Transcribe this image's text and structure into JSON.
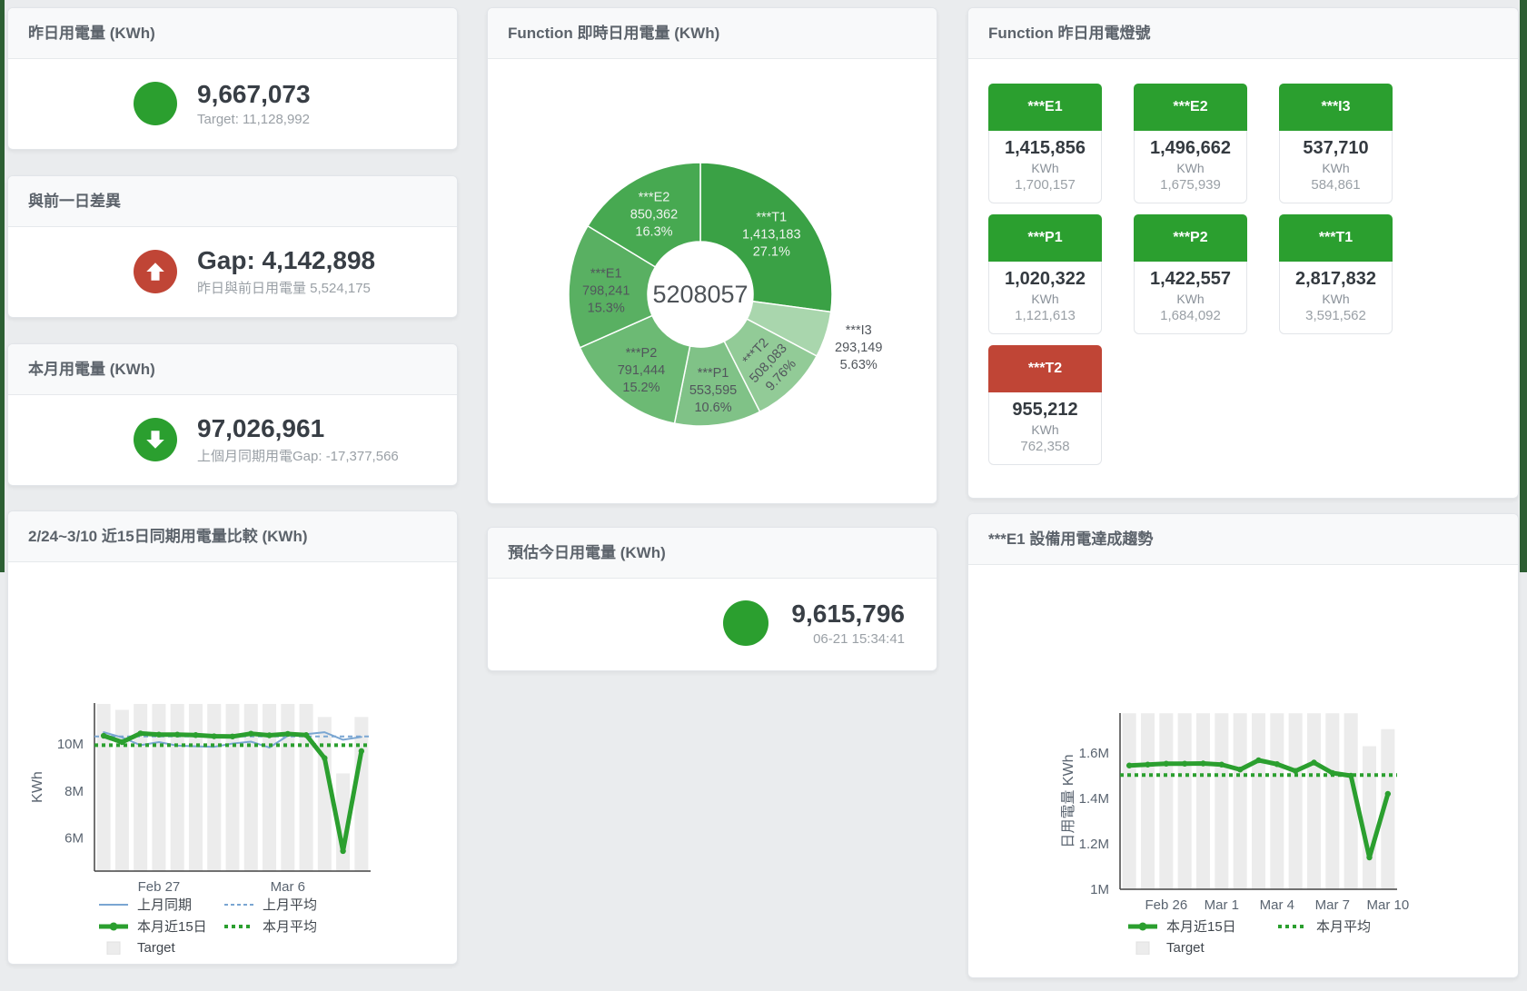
{
  "colors": {
    "green": "#2b9f2f",
    "red": "#c04536",
    "blue": "#7aa6d2",
    "target_bar": "#ececec",
    "edge": "#2d5f33"
  },
  "cards": {
    "yesterday": {
      "title": "昨日用電量 (KWh)",
      "value": "9,667,073",
      "subtitle": "Target: 11,128,992"
    },
    "diff": {
      "title": "與前一日差異",
      "value": "Gap: 4,142,898",
      "subtitle": "昨日與前日用電量 5,524,175"
    },
    "month": {
      "title": "本月用電量 (KWh)",
      "value": "97,026,961",
      "subtitle": "上個月同期用電Gap: -17,377,566"
    },
    "compare": {
      "title": "2/24~3/10 近15日同期用電量比較 (KWh)"
    },
    "donut": {
      "title": "Function 即時日用電量 (KWh)"
    },
    "forecast": {
      "title": "預估今日用電量 (KWh)",
      "value": "9,615,796",
      "subtitle": "06-21 15:34:41"
    },
    "lights": {
      "title": "Function 昨日用電燈號"
    },
    "e1trend": {
      "title": "***E1 設備用電達成趨勢"
    }
  },
  "lights_tiles": [
    {
      "name": "***E1",
      "value": "1,415,856",
      "unit": "KWh",
      "target": "1,700,157",
      "status": "green"
    },
    {
      "name": "***E2",
      "value": "1,496,662",
      "unit": "KWh",
      "target": "1,675,939",
      "status": "green"
    },
    {
      "name": "***I3",
      "value": "537,710",
      "unit": "KWh",
      "target": "584,861",
      "status": "green"
    },
    {
      "name": "***P1",
      "value": "1,020,322",
      "unit": "KWh",
      "target": "1,121,613",
      "status": "green"
    },
    {
      "name": "***P2",
      "value": "1,422,557",
      "unit": "KWh",
      "target": "1,684,092",
      "status": "green"
    },
    {
      "name": "***T1",
      "value": "2,817,832",
      "unit": "KWh",
      "target": "3,591,562",
      "status": "green"
    },
    {
      "name": "***T2",
      "value": "955,212",
      "unit": "KWh",
      "target": "762,358",
      "status": "red"
    }
  ],
  "chart_data": [
    {
      "type": "pie",
      "title": "Function 即時日用電量 (KWh)",
      "center_label": "5208057",
      "legend_position": "none",
      "slices": [
        {
          "name": "***T1",
          "value": 1413183,
          "value_label": "1,413,183",
          "pct": 27.1,
          "pct_label": "27.1%",
          "color": "#3aa145",
          "label_pos": "inside",
          "label_color": "#eef3ee"
        },
        {
          "name": "***I3",
          "value": 293149,
          "value_label": "293,149",
          "pct": 5.63,
          "pct_label": "5.63%",
          "color": "#a9d6ad",
          "label_pos": "outside",
          "label_color": "#51565c"
        },
        {
          "name": "***T2",
          "value": 508083,
          "value_label": "508,083",
          "pct": 9.76,
          "pct_label": "9.76%",
          "color": "#92cb97",
          "label_pos": "inside",
          "label_color": "#51565c",
          "rotation": -47
        },
        {
          "name": "***P1",
          "value": 553595,
          "value_label": "553,595",
          "pct": 10.6,
          "pct_label": "10.6%",
          "color": "#80c287",
          "label_pos": "inside",
          "label_color": "#51565c"
        },
        {
          "name": "***P2",
          "value": 791444,
          "value_label": "791,444",
          "pct": 15.2,
          "pct_label": "15.2%",
          "color": "#6cba74",
          "label_pos": "inside",
          "label_color": "#51565c"
        },
        {
          "name": "***E1",
          "value": 798241,
          "value_label": "798,241",
          "pct": 15.3,
          "pct_label": "15.3%",
          "color": "#59b062",
          "label_pos": "inside",
          "label_color": "#51565c"
        },
        {
          "name": "***E2",
          "value": 850362,
          "value_label": "850,362",
          "pct": 16.3,
          "pct_label": "16.3%",
          "color": "#47a951",
          "label_pos": "inside",
          "label_color": "#eef3ee"
        }
      ]
    },
    {
      "type": "bar",
      "title": "2/24~3/10 近15日同期用電量比較 (KWh)",
      "ylabel": "KWh",
      "ylim": [
        4.6,
        11.74
      ],
      "grid": false,
      "yticks": [
        {
          "v": 6,
          "label": "6M"
        },
        {
          "v": 8,
          "label": "8M"
        },
        {
          "v": 10,
          "label": "10M"
        }
      ],
      "xticks": [
        {
          "i": 3,
          "label": "Feb 27"
        },
        {
          "i": 10,
          "label": "Mar 6"
        }
      ],
      "bars": {
        "name": "Target",
        "color": "#ececec",
        "values": [
          11.7,
          11.45,
          11.7,
          11.7,
          11.7,
          11.7,
          11.7,
          11.7,
          11.7,
          11.7,
          11.7,
          11.7,
          11.15,
          8.75,
          11.15
        ]
      },
      "series": [
        {
          "name": "上月同期",
          "style": "line",
          "color": "#7aa6d2",
          "width": 2,
          "values": [
            10.5,
            10.28,
            9.95,
            10.08,
            9.93,
            9.9,
            9.88,
            10.02,
            10.1,
            9.85,
            10.35,
            10.42,
            10.5,
            10.18,
            10.3
          ]
        },
        {
          "name": "上月平均",
          "style": "avg-dash",
          "color": "#7aa6d2",
          "width": 2,
          "value": 10.32
        },
        {
          "name": "本月近15日",
          "style": "thick",
          "color": "#2b9f2f",
          "width": 5,
          "values": [
            10.35,
            10.08,
            10.45,
            10.4,
            10.4,
            10.38,
            10.33,
            10.32,
            10.44,
            10.37,
            10.43,
            10.38,
            9.4,
            5.45,
            9.7
          ]
        },
        {
          "name": "本月平均",
          "style": "avg-dot",
          "color": "#2b9f2f",
          "width": 4,
          "value": 9.95
        }
      ],
      "legend": [
        [
          {
            "label": "上月同期",
            "sample": "line",
            "color": "#7aa6d2"
          },
          {
            "label": "上月平均",
            "sample": "dash",
            "color": "#7aa6d2"
          }
        ],
        [
          {
            "label": "本月近15日",
            "sample": "thick",
            "color": "#2b9f2f"
          },
          {
            "label": "本月平均",
            "sample": "dots",
            "color": "#2b9f2f"
          }
        ],
        [
          {
            "label": "Target",
            "sample": "box",
            "color": "#ececec"
          }
        ]
      ]
    },
    {
      "type": "bar",
      "title": "***E1 設備用電達成趨勢",
      "ylabel": "日用電量 KWh",
      "ylim": [
        1.0,
        1.776
      ],
      "grid": false,
      "yticks": [
        {
          "v": 1,
          "label": "1M"
        },
        {
          "v": 1.2,
          "label": "1.2M"
        },
        {
          "v": 1.4,
          "label": "1.4M"
        },
        {
          "v": 1.6,
          "label": "1.6M"
        }
      ],
      "xticks": [
        {
          "i": 2,
          "label": "Feb 26"
        },
        {
          "i": 5,
          "label": "Mar 1"
        },
        {
          "i": 8,
          "label": "Mar 4"
        },
        {
          "i": 11,
          "label": "Mar 7"
        },
        {
          "i": 14,
          "label": "Mar 10"
        }
      ],
      "bars": {
        "name": "Target",
        "color": "#ececec",
        "values": [
          1.775,
          1.775,
          1.775,
          1.775,
          1.775,
          1.775,
          1.775,
          1.775,
          1.775,
          1.775,
          1.775,
          1.775,
          1.775,
          1.63,
          1.705
        ]
      },
      "series": [
        {
          "name": "本月近15日",
          "style": "thick",
          "color": "#2b9f2f",
          "width": 5,
          "values": [
            1.545,
            1.549,
            1.553,
            1.553,
            1.554,
            1.549,
            1.527,
            1.568,
            1.551,
            1.521,
            1.558,
            1.512,
            1.5,
            1.14,
            1.42
          ]
        },
        {
          "name": "本月平均",
          "style": "avg-dot",
          "color": "#2b9f2f",
          "width": 4,
          "value": 1.503
        }
      ],
      "legend": [
        [
          {
            "label": "本月近15日",
            "sample": "thick",
            "color": "#2b9f2f"
          },
          {
            "label": "本月平均",
            "sample": "dots",
            "color": "#2b9f2f"
          }
        ],
        [
          {
            "label": "Target",
            "sample": "box",
            "color": "#ececec"
          }
        ]
      ]
    }
  ]
}
